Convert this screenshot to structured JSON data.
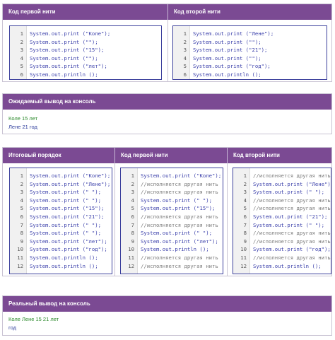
{
  "top_left": {
    "header": "Код первой нити",
    "lines": [
      {
        "n": "1",
        "t": "System.out.print (\"Коле\");"
      },
      {
        "n": "2",
        "t": "System.out.print (\"\");"
      },
      {
        "n": "3",
        "t": "System.out.print (\"15\");"
      },
      {
        "n": "4",
        "t": "System.out.print (\"\");"
      },
      {
        "n": "5",
        "t": "System.out.print (\"лет\");"
      },
      {
        "n": "6",
        "t": "System.out.println ();"
      }
    ]
  },
  "top_right": {
    "header": "Код второй нити",
    "lines": [
      {
        "n": "1",
        "t": "System.out.print (\"Лене\");"
      },
      {
        "n": "2",
        "t": "System.out.print (\"\");"
      },
      {
        "n": "3",
        "t": "System.out.print (\"21\");"
      },
      {
        "n": "4",
        "t": "System.out.print (\"\");"
      },
      {
        "n": "5",
        "t": "System.out.print (\"год\");"
      },
      {
        "n": "6",
        "t": "System.out.println ();"
      }
    ]
  },
  "expected": {
    "header": "Ожидаемый вывод на консоль",
    "line1": "Коле 15 лет",
    "line2": "Лене 21 год"
  },
  "bottom_col1": {
    "header": "Итоговый порядок",
    "lines": [
      {
        "n": "1",
        "t": "System.out.print (\"Коле\");"
      },
      {
        "n": "2",
        "t": "System.out.print (\"Лене\");"
      },
      {
        "n": "3",
        "t": "System.out.print (\" \");"
      },
      {
        "n": "4",
        "t": "System.out.print (\" \");"
      },
      {
        "n": "5",
        "t": "System.out.print (\"15\");"
      },
      {
        "n": "6",
        "t": "System.out.print (\"21\");"
      },
      {
        "n": "7",
        "t": "System.out.print (\" \");"
      },
      {
        "n": "8",
        "t": "System.out.print (\" \");"
      },
      {
        "n": "9",
        "t": "System.out.print (\"лет\");"
      },
      {
        "n": "10",
        "t": "System.out.print (\"год\");"
      },
      {
        "n": "11",
        "t": "System.out.println ();"
      },
      {
        "n": "12",
        "t": "System.out.println ();"
      }
    ]
  },
  "bottom_col2": {
    "header": "Код первой нити",
    "lines": [
      {
        "n": "1",
        "t": "System.out.print (\"Коле\");"
      },
      {
        "n": "2",
        "t": "//исполняется другая нить"
      },
      {
        "n": "3",
        "t": "//исполняется другая нить"
      },
      {
        "n": "4",
        "t": "System.out.print (\" \");"
      },
      {
        "n": "5",
        "t": "System.out.print (\"15\");"
      },
      {
        "n": "6",
        "t": "//исполняется другая нить"
      },
      {
        "n": "7",
        "t": "//исполняется другая нить"
      },
      {
        "n": "8",
        "t": "System.out.print (\" \");"
      },
      {
        "n": "9",
        "t": "System.out.print (\"лет\");"
      },
      {
        "n": "10",
        "t": "System.out.println ();"
      },
      {
        "n": "11",
        "t": "//исполняется другая нить"
      },
      {
        "n": "12",
        "t": "//исполняется другая нить"
      }
    ]
  },
  "bottom_col3": {
    "header": "Код второй нити",
    "lines": [
      {
        "n": "1",
        "t": "//исполняется другая нить"
      },
      {
        "n": "2",
        "t": "System.out.print (\"Лене\");"
      },
      {
        "n": "3",
        "t": "System.out.print (\" \");"
      },
      {
        "n": "4",
        "t": "//исполняется другая нить"
      },
      {
        "n": "5",
        "t": "//исполняется другая нить"
      },
      {
        "n": "6",
        "t": "System.out.print (\"21\");"
      },
      {
        "n": "7",
        "t": "System.out.print (\" \");"
      },
      {
        "n": "8",
        "t": "//исполняется другая нить"
      },
      {
        "n": "9",
        "t": "//исполняется другая нить"
      },
      {
        "n": "10",
        "t": "System.out.print (\"год\");"
      },
      {
        "n": "11",
        "t": "//исполняется другая нить"
      },
      {
        "n": "12",
        "t": "System.out.println ();"
      }
    ]
  },
  "actual": {
    "header": "Реальный вывод на консоль",
    "line1": "Коле Лене  15 21 лет",
    "line2": "год"
  },
  "colors": {
    "header_bg": "#7b4a93",
    "code_text": "#3a3faa",
    "comment_text": "#7a7a7a",
    "output_green": "#2b8a2b",
    "output_blue": "#2e3d9c"
  }
}
